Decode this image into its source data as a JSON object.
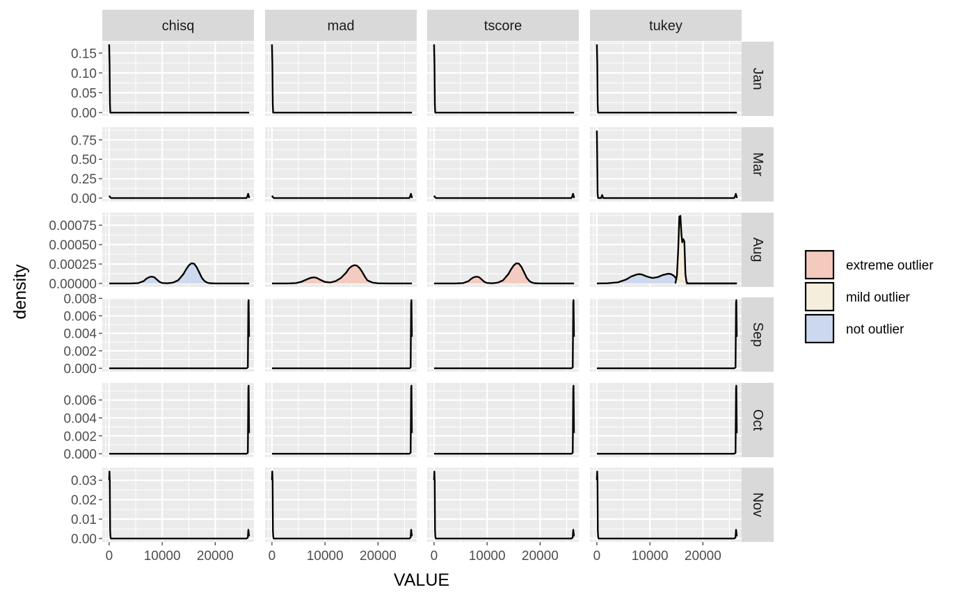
{
  "chart_data": {
    "type": "area",
    "facets": {
      "columns": [
        "chisq",
        "mad",
        "tscore",
        "tukey"
      ],
      "rows": [
        "Jan",
        "Mar",
        "Aug",
        "Sep",
        "Oct",
        "Nov"
      ]
    },
    "xlabel": "VALUE",
    "ylabel": "density",
    "xlim": [
      -1300,
      27300
    ],
    "xticks": [
      0,
      10000,
      20000
    ],
    "xtick_labels": [
      "0",
      "10000",
      "20000"
    ],
    "rows": [
      {
        "name": "Jan",
        "ylim": [
          -0.0087,
          0.1787
        ],
        "yticks": [
          0,
          0.05,
          0.1,
          0.15
        ],
        "ytick_labels": [
          "0.00",
          "0.05",
          "0.10",
          "0.15"
        ]
      },
      {
        "name": "Mar",
        "ylim": [
          -0.044,
          0.914
        ],
        "yticks": [
          0,
          0.25,
          0.5,
          0.75
        ],
        "ytick_labels": [
          "0.00",
          "0.25",
          "0.50",
          "0.75"
        ]
      },
      {
        "name": "Aug",
        "ylim": [
          -4.51e-05,
          0.000912
        ],
        "yticks": [
          0,
          0.00025,
          0.0005,
          0.00075
        ],
        "ytick_labels": [
          "0.00000",
          "0.00025",
          "0.00050",
          "0.00075"
        ]
      },
      {
        "name": "Sep",
        "ylim": [
          -0.000392,
          0.00811
        ],
        "yticks": [
          0,
          0.002,
          0.004,
          0.006,
          0.008
        ],
        "ytick_labels": [
          "0.000",
          "0.002",
          "0.004",
          "0.006",
          "0.008"
        ]
      },
      {
        "name": "Oct",
        "ylim": [
          -0.000385,
          0.00792
        ],
        "yticks": [
          0,
          0.002,
          0.004,
          0.006
        ],
        "ytick_labels": [
          "0.000",
          "0.002",
          "0.004",
          "0.006"
        ]
      },
      {
        "name": "Nov",
        "ylim": [
          -0.00177,
          0.0365
        ],
        "yticks": [
          0,
          0.01,
          0.02,
          0.03
        ],
        "ytick_labels": [
          "0.00",
          "0.01",
          "0.02",
          "0.03"
        ]
      }
    ],
    "legend": {
      "position": "right",
      "entries": [
        {
          "key": "extreme",
          "label": "extreme outlier",
          "color": "#F4C9BE"
        },
        {
          "key": "mild",
          "label": "mild outlier",
          "color": "#F5EEDC"
        },
        {
          "key": "not",
          "label": "not outlier",
          "color": "#CBD8EE"
        }
      ]
    },
    "panel_background": "#EBEBEB",
    "strip_background": "#D9D9D9",
    "grid": true,
    "panels": [
      {
        "row": "Jan",
        "col": "chisq",
        "x": [
          0,
          80,
          150,
          220,
          26400
        ],
        "y": [
          0.172,
          0.12,
          0.02,
          0,
          0
        ]
      },
      {
        "row": "Jan",
        "col": "mad",
        "x": [
          0,
          80,
          150,
          220,
          26400
        ],
        "y": [
          0.172,
          0.12,
          0.02,
          0,
          0
        ]
      },
      {
        "row": "Jan",
        "col": "tscore",
        "x": [
          0,
          80,
          150,
          220,
          26400
        ],
        "y": [
          0.172,
          0.12,
          0.02,
          0,
          0
        ]
      },
      {
        "row": "Jan",
        "col": "tukey",
        "x": [
          0,
          80,
          150,
          220,
          26400
        ],
        "y": [
          0.172,
          0.12,
          0.02,
          0,
          0
        ]
      },
      {
        "row": "Mar",
        "col": "chisq",
        "x": [
          0,
          200,
          400,
          25900,
          26050,
          26200,
          26350,
          26400
        ],
        "y": [
          0.03,
          0.01,
          0,
          0,
          0.02,
          0.055,
          0.02,
          0
        ]
      },
      {
        "row": "Mar",
        "col": "mad",
        "x": [
          0,
          200,
          400,
          25900,
          26050,
          26200,
          26350,
          26400
        ],
        "y": [
          0.03,
          0.01,
          0,
          0,
          0.02,
          0.055,
          0.02,
          0
        ]
      },
      {
        "row": "Mar",
        "col": "tscore",
        "x": [
          0,
          200,
          400,
          25900,
          26050,
          26200,
          26350,
          26400
        ],
        "y": [
          0.03,
          0.01,
          0,
          0,
          0.02,
          0.055,
          0.02,
          0
        ]
      },
      {
        "row": "Mar",
        "col": "tukey",
        "x": [
          0,
          60,
          140,
          250,
          800,
          1000,
          1200,
          25900,
          26050,
          26200,
          26350,
          26400
        ],
        "y": [
          0.87,
          0.55,
          0.05,
          0,
          0,
          0.04,
          0,
          0,
          0.02,
          0.055,
          0.02,
          0
        ]
      },
      {
        "row": "Aug",
        "col": "chisq",
        "fill": "not",
        "x": [
          0,
          4000,
          5500,
          6500,
          7000,
          7500,
          8000,
          8500,
          9000,
          9500,
          10000,
          11000,
          12000,
          13000,
          14000,
          14500,
          15000,
          15500,
          16000,
          16500,
          17000,
          17500,
          18000,
          18500,
          19000,
          20000,
          22000,
          26400
        ],
        "y": [
          0,
          0,
          5e-06,
          3e-05,
          6e-05,
          8e-05,
          8.8e-05,
          8e-05,
          5e-05,
          2e-05,
          6e-06,
          2e-06,
          1e-05,
          4e-05,
          0.00012,
          0.00018,
          0.00023,
          0.00026,
          0.000255,
          0.00021,
          0.00014,
          7e-05,
          3e-05,
          1e-05,
          3e-06,
          0,
          0,
          0
        ]
      },
      {
        "row": "Aug",
        "col": "mad",
        "fill": "extreme",
        "x": [
          0,
          3000,
          4500,
          5500,
          6500,
          7000,
          7500,
          8000,
          8500,
          9000,
          10000,
          11000,
          12000,
          13000,
          14000,
          14500,
          15000,
          15500,
          16000,
          16500,
          17000,
          17500,
          18000,
          19000,
          20000,
          22000,
          26400
        ],
        "y": [
          0,
          0,
          5e-06,
          2e-05,
          5e-05,
          6.5e-05,
          7.5e-05,
          7.8e-05,
          7e-05,
          5e-05,
          2e-05,
          1.2e-05,
          3e-05,
          7e-05,
          0.00014,
          0.00019,
          0.00022,
          0.000235,
          0.00023,
          0.0002,
          0.00015,
          9e-05,
          4e-05,
          1e-05,
          2e-06,
          0,
          0
        ]
      },
      {
        "row": "Aug",
        "col": "tscore",
        "fill": "extreme",
        "x": [
          0,
          4000,
          5500,
          6500,
          7000,
          7500,
          8000,
          8500,
          9000,
          9500,
          10000,
          11000,
          12000,
          13000,
          14000,
          14500,
          15000,
          15500,
          16000,
          16500,
          17000,
          17500,
          18000,
          18500,
          19000,
          20000,
          22000,
          26400
        ],
        "y": [
          0,
          0,
          5e-06,
          3e-05,
          6e-05,
          8e-05,
          8.8e-05,
          8e-05,
          5e-05,
          2e-05,
          6e-06,
          2e-06,
          1e-05,
          4e-05,
          0.00012,
          0.00018,
          0.00023,
          0.00026,
          0.000255,
          0.00021,
          0.00014,
          7e-05,
          3e-05,
          1e-05,
          3e-06,
          0,
          0,
          0
        ]
      },
      {
        "row": "Aug",
        "col": "tukey",
        "fill": "not",
        "x": [
          0,
          2000,
          4000,
          5500,
          6500,
          7500,
          8000,
          8500,
          9500,
          10500,
          11500,
          12500,
          13500,
          14000,
          14500,
          15000,
          17000,
          26400
        ],
        "y": [
          0,
          2e-06,
          1.5e-05,
          5e-05,
          9e-05,
          0.000115,
          0.00012,
          0.000115,
          8.8e-05,
          7e-05,
          8.2e-05,
          0.00011,
          0.000125,
          0.00012,
          0.0001,
          6e-05,
          0,
          0
        ],
        "overlay": {
          "fill": "mild",
          "x": [
            14800,
            15100,
            15350,
            15550,
            15750,
            15950,
            16100,
            16300,
            16500,
            16700,
            16900,
            17200,
            17500,
            26400
          ],
          "y": [
            0,
            0.0001,
            0.00045,
            0.00086,
            0.00087,
            0.00063,
            0.00053,
            0.00057,
            0.00054,
            0.00012,
            2e-05,
            0,
            0,
            0
          ]
        }
      },
      {
        "row": "Sep",
        "col": "chisq",
        "x": [
          0,
          25900,
          26150,
          26250,
          26300,
          26380,
          26400
        ],
        "y": [
          0,
          0,
          0.0001,
          0.0075,
          0.0078,
          0.0037,
          0.0036
        ]
      },
      {
        "row": "Sep",
        "col": "mad",
        "x": [
          0,
          25900,
          26150,
          26250,
          26300,
          26380,
          26400
        ],
        "y": [
          0,
          0,
          0.0001,
          0.0075,
          0.0078,
          0.0037,
          0.0036
        ]
      },
      {
        "row": "Sep",
        "col": "tscore",
        "x": [
          0,
          25900,
          26150,
          26250,
          26300,
          26380,
          26400
        ],
        "y": [
          0,
          0,
          0.0001,
          0.0075,
          0.0078,
          0.0037,
          0.0036
        ]
      },
      {
        "row": "Sep",
        "col": "tukey",
        "x": [
          0,
          25900,
          26150,
          26250,
          26300,
          26380,
          26400
        ],
        "y": [
          0,
          0,
          0.0001,
          0.0075,
          0.0078,
          0.0037,
          0.0036
        ]
      },
      {
        "row": "Oct",
        "col": "chisq",
        "x": [
          0,
          25900,
          26150,
          26250,
          26300,
          26380,
          26400
        ],
        "y": [
          0,
          0,
          0.0001,
          0.0073,
          0.0076,
          0.0024,
          0.0023
        ]
      },
      {
        "row": "Oct",
        "col": "mad",
        "x": [
          0,
          25900,
          26150,
          26250,
          26300,
          26380,
          26400
        ],
        "y": [
          0,
          0,
          0.0001,
          0.0073,
          0.0076,
          0.0024,
          0.0023
        ]
      },
      {
        "row": "Oct",
        "col": "tscore",
        "x": [
          0,
          25900,
          26150,
          26250,
          26300,
          26380,
          26400
        ],
        "y": [
          0,
          0,
          0.0001,
          0.0073,
          0.0076,
          0.0024,
          0.0023
        ]
      },
      {
        "row": "Oct",
        "col": "tukey",
        "x": [
          0,
          25900,
          26150,
          26250,
          26300,
          26380,
          26400
        ],
        "y": [
          0,
          0,
          0.0001,
          0.0073,
          0.0076,
          0.0024,
          0.0023
        ]
      },
      {
        "row": "Nov",
        "col": "chisq",
        "x": [
          0,
          60,
          120,
          180,
          240,
          320,
          25900,
          26150,
          26250,
          26330,
          26400
        ],
        "y": [
          0.03,
          0.0345,
          0.03,
          0.004,
          0.001,
          0,
          0,
          0.0005,
          0.0045,
          0.0025,
          0.0012
        ]
      },
      {
        "row": "Nov",
        "col": "mad",
        "x": [
          0,
          60,
          120,
          180,
          240,
          320,
          25900,
          26150,
          26250,
          26330,
          26400
        ],
        "y": [
          0.03,
          0.0345,
          0.03,
          0.004,
          0.001,
          0,
          0,
          0.0005,
          0.0045,
          0.0025,
          0.0012
        ]
      },
      {
        "row": "Nov",
        "col": "tscore",
        "x": [
          0,
          60,
          120,
          180,
          240,
          320,
          25900,
          26150,
          26250,
          26330,
          26400
        ],
        "y": [
          0.03,
          0.0345,
          0.03,
          0.004,
          0.001,
          0,
          0,
          0.0005,
          0.0045,
          0.0025,
          0.0012
        ]
      },
      {
        "row": "Nov",
        "col": "tukey",
        "x": [
          0,
          60,
          120,
          180,
          240,
          320,
          25900,
          26150,
          26250,
          26330,
          26400
        ],
        "y": [
          0.03,
          0.0345,
          0.03,
          0.004,
          0.001,
          0,
          0,
          0.0005,
          0.0045,
          0.0025,
          0.0012
        ]
      }
    ]
  }
}
